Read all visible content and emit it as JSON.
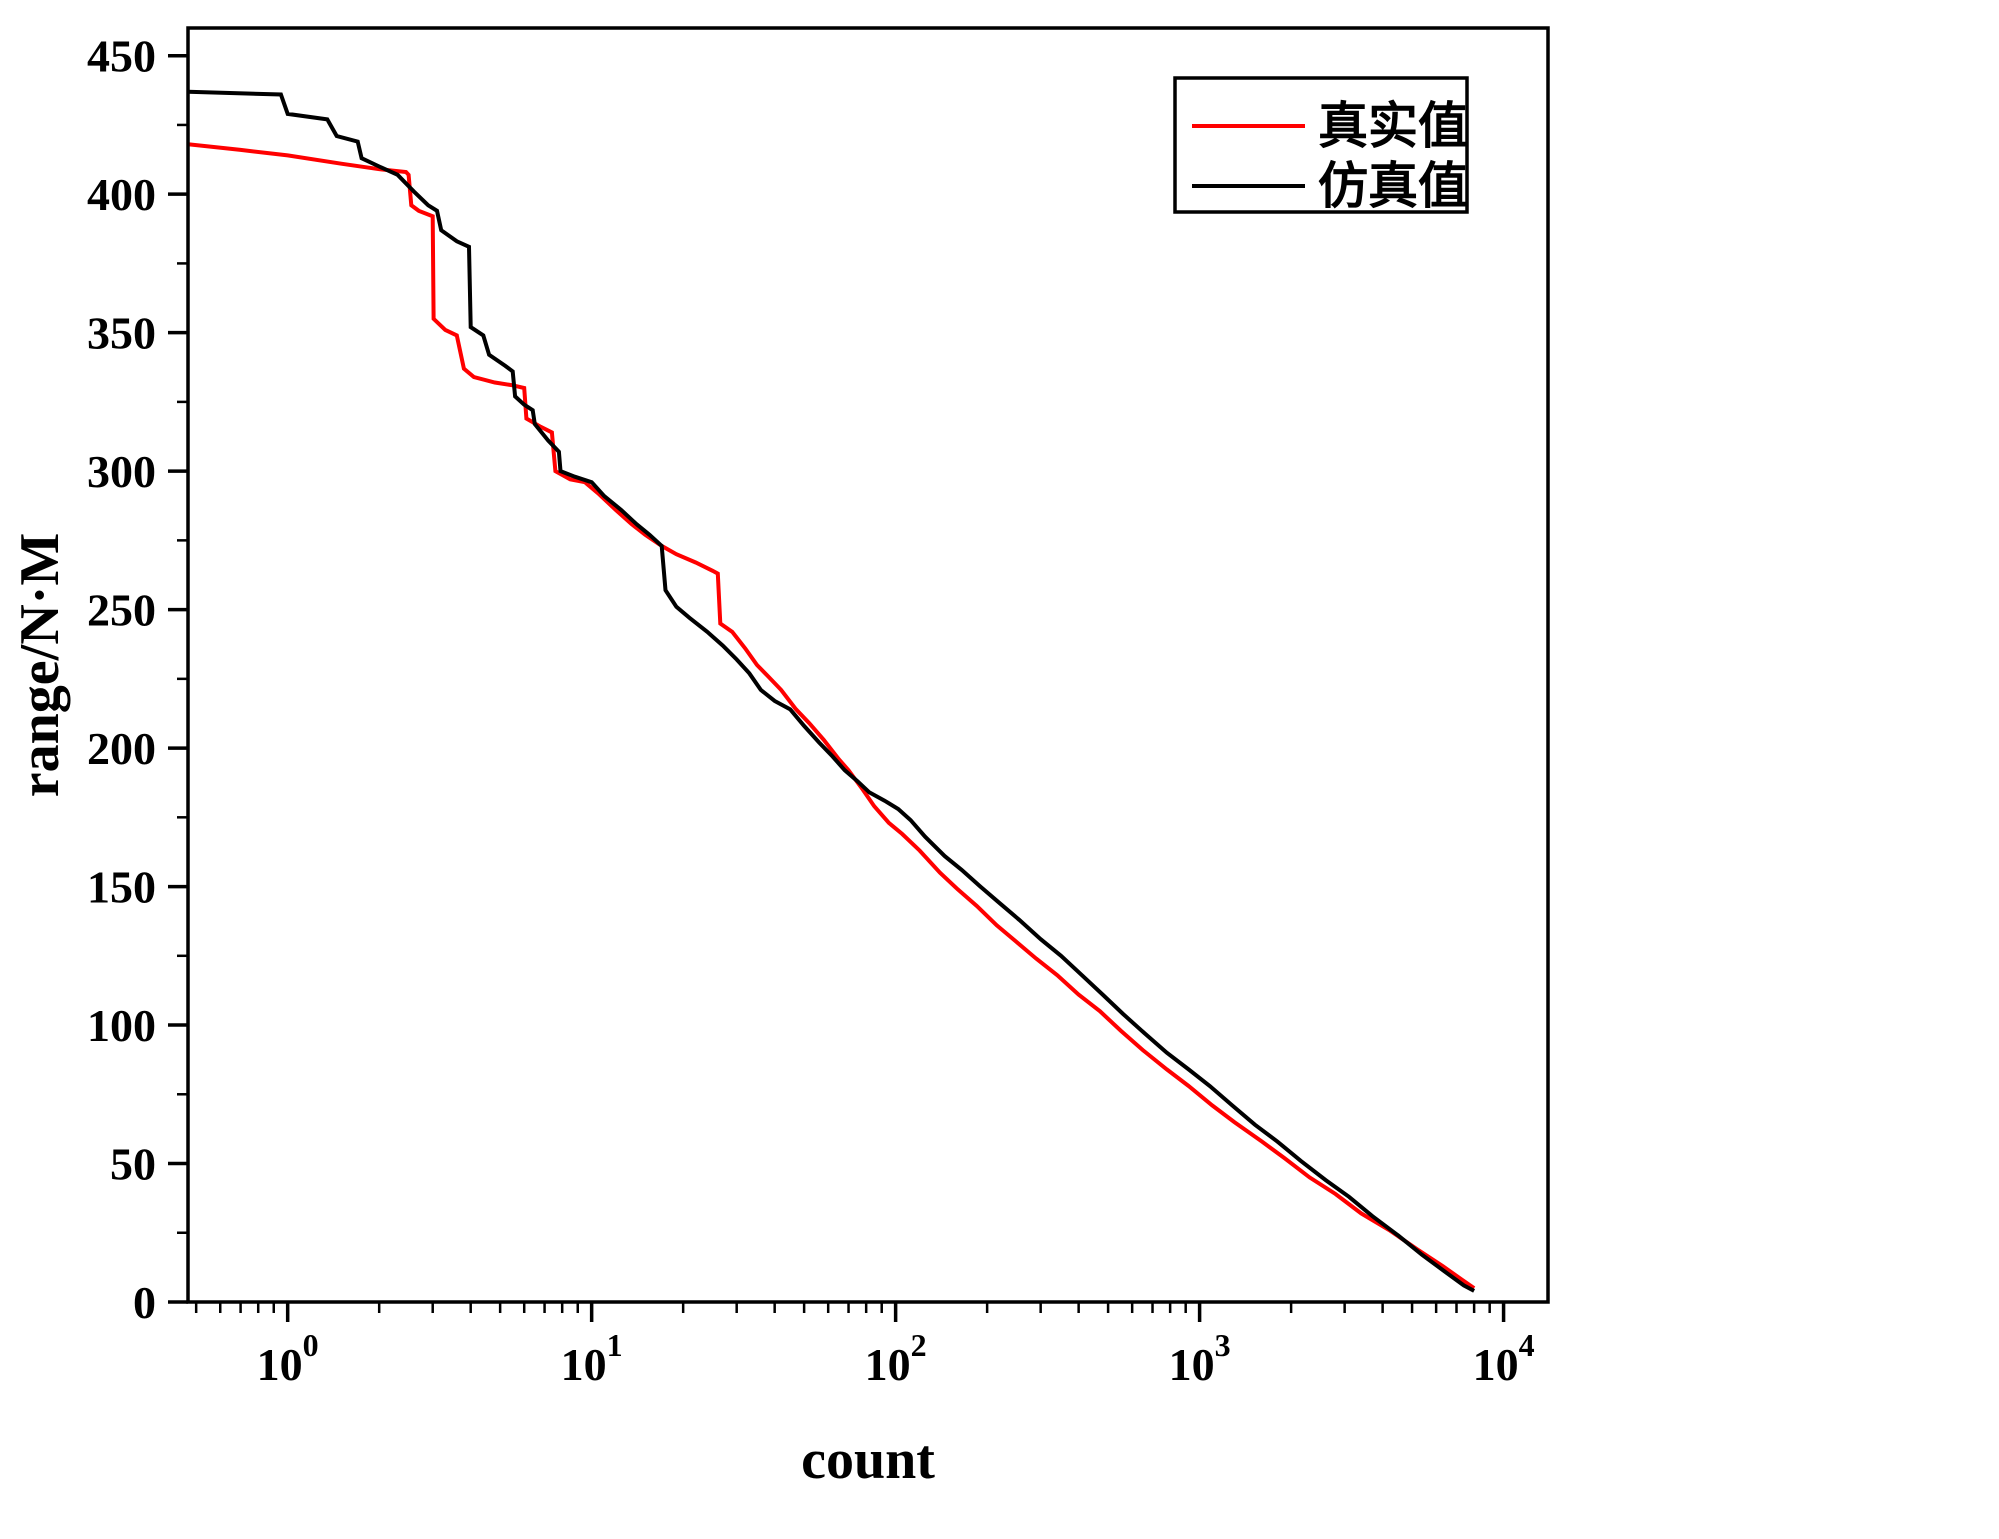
{
  "figure": {
    "background": "#ffffff",
    "border_color": "#000000"
  },
  "chart_data": {
    "type": "line",
    "title": "",
    "xlabel": "count",
    "ylabel": "range/N·M",
    "x_scale": "log",
    "y_scale": "linear",
    "xlim": [
      0.47,
      14000
    ],
    "ylim": [
      0,
      460
    ],
    "x_major_tick_exponents": [
      0,
      1,
      2,
      3,
      4
    ],
    "y_major_ticks": [
      0,
      50,
      100,
      150,
      200,
      250,
      300,
      350,
      400,
      450
    ],
    "y_minor_step": 25,
    "grid": false,
    "legend": {
      "position": "top-right",
      "entries": [
        {
          "label": "真实值",
          "color": "#ff0000"
        },
        {
          "label": "仿真值",
          "color": "#000000"
        }
      ]
    },
    "series": [
      {
        "name": "真实值",
        "color": "#ff0000",
        "points": [
          [
            0.47,
            418
          ],
          [
            0.7,
            416
          ],
          [
            1.0,
            414
          ],
          [
            1.5,
            411
          ],
          [
            2.0,
            409
          ],
          [
            2.45,
            408
          ],
          [
            2.5,
            407
          ],
          [
            2.55,
            396
          ],
          [
            2.7,
            394
          ],
          [
            3.0,
            392
          ],
          [
            3.02,
            355
          ],
          [
            3.3,
            351
          ],
          [
            3.6,
            349
          ],
          [
            3.8,
            337
          ],
          [
            4.1,
            334
          ],
          [
            4.8,
            332
          ],
          [
            5.5,
            331
          ],
          [
            6.0,
            330
          ],
          [
            6.1,
            319
          ],
          [
            6.8,
            316
          ],
          [
            7.4,
            314
          ],
          [
            7.6,
            300
          ],
          [
            8.5,
            297
          ],
          [
            9.5,
            296
          ],
          [
            10.5,
            292
          ],
          [
            12,
            286
          ],
          [
            13.5,
            281
          ],
          [
            15,
            277
          ],
          [
            17,
            273
          ],
          [
            19,
            270
          ],
          [
            22,
            267
          ],
          [
            25,
            264
          ],
          [
            26,
            263
          ],
          [
            26.5,
            245
          ],
          [
            29,
            242
          ],
          [
            32,
            236
          ],
          [
            35,
            230
          ],
          [
            38,
            226
          ],
          [
            42,
            221
          ],
          [
            47,
            214
          ],
          [
            52,
            209
          ],
          [
            58,
            203
          ],
          [
            65,
            196
          ],
          [
            70,
            192
          ],
          [
            78,
            185
          ],
          [
            85,
            179
          ],
          [
            95,
            173
          ],
          [
            105,
            169
          ],
          [
            120,
            163
          ],
          [
            140,
            155
          ],
          [
            160,
            149
          ],
          [
            185,
            143
          ],
          [
            215,
            136
          ],
          [
            250,
            130
          ],
          [
            290,
            124
          ],
          [
            340,
            118
          ],
          [
            400,
            111
          ],
          [
            470,
            105
          ],
          [
            550,
            98
          ],
          [
            650,
            91
          ],
          [
            780,
            84
          ],
          [
            920,
            78
          ],
          [
            1100,
            71
          ],
          [
            1300,
            65
          ],
          [
            1600,
            58
          ],
          [
            1900,
            52
          ],
          [
            2300,
            45
          ],
          [
            2800,
            39
          ],
          [
            3400,
            32
          ],
          [
            4200,
            26
          ],
          [
            5200,
            19
          ],
          [
            6300,
            13
          ],
          [
            7300,
            8
          ],
          [
            8000,
            5
          ]
        ]
      },
      {
        "name": "仿真值",
        "color": "#000000",
        "points": [
          [
            0.47,
            437
          ],
          [
            0.95,
            436
          ],
          [
            1.0,
            429
          ],
          [
            1.35,
            427
          ],
          [
            1.45,
            421
          ],
          [
            1.7,
            419
          ],
          [
            1.75,
            413
          ],
          [
            2.0,
            410
          ],
          [
            2.3,
            407
          ],
          [
            2.6,
            401
          ],
          [
            2.9,
            396
          ],
          [
            3.1,
            394
          ],
          [
            3.2,
            387
          ],
          [
            3.6,
            383
          ],
          [
            3.95,
            381
          ],
          [
            4.0,
            352
          ],
          [
            4.4,
            349
          ],
          [
            4.6,
            342
          ],
          [
            5.2,
            338
          ],
          [
            5.5,
            336
          ],
          [
            5.6,
            327
          ],
          [
            6.0,
            324
          ],
          [
            6.4,
            322
          ],
          [
            6.5,
            317
          ],
          [
            7.2,
            311
          ],
          [
            7.8,
            307
          ],
          [
            7.9,
            300
          ],
          [
            8.8,
            298
          ],
          [
            10,
            296
          ],
          [
            11,
            291
          ],
          [
            12.5,
            286
          ],
          [
            14,
            281
          ],
          [
            15.5,
            277
          ],
          [
            17,
            273
          ],
          [
            17.5,
            257
          ],
          [
            19,
            251
          ],
          [
            21,
            247
          ],
          [
            24,
            242
          ],
          [
            27,
            237
          ],
          [
            30,
            232
          ],
          [
            33,
            227
          ],
          [
            36,
            221
          ],
          [
            40,
            217
          ],
          [
            45,
            214
          ],
          [
            50,
            208
          ],
          [
            56,
            202
          ],
          [
            62,
            197
          ],
          [
            68,
            192
          ],
          [
            75,
            188
          ],
          [
            82,
            184
          ],
          [
            92,
            181
          ],
          [
            102,
            178
          ],
          [
            112,
            174
          ],
          [
            125,
            168
          ],
          [
            145,
            161
          ],
          [
            165,
            156
          ],
          [
            190,
            150
          ],
          [
            220,
            144
          ],
          [
            255,
            138
          ],
          [
            300,
            131
          ],
          [
            350,
            125
          ],
          [
            410,
            118
          ],
          [
            480,
            111
          ],
          [
            560,
            104
          ],
          [
            660,
            97
          ],
          [
            780,
            90
          ],
          [
            920,
            84
          ],
          [
            1080,
            78
          ],
          [
            1280,
            71
          ],
          [
            1520,
            64
          ],
          [
            1800,
            58
          ],
          [
            2150,
            51
          ],
          [
            2600,
            44
          ],
          [
            3100,
            38
          ],
          [
            3700,
            31
          ],
          [
            4500,
            24
          ],
          [
            5400,
            17
          ],
          [
            6400,
            11
          ],
          [
            7400,
            6
          ],
          [
            8000,
            4
          ]
        ]
      }
    ]
  }
}
